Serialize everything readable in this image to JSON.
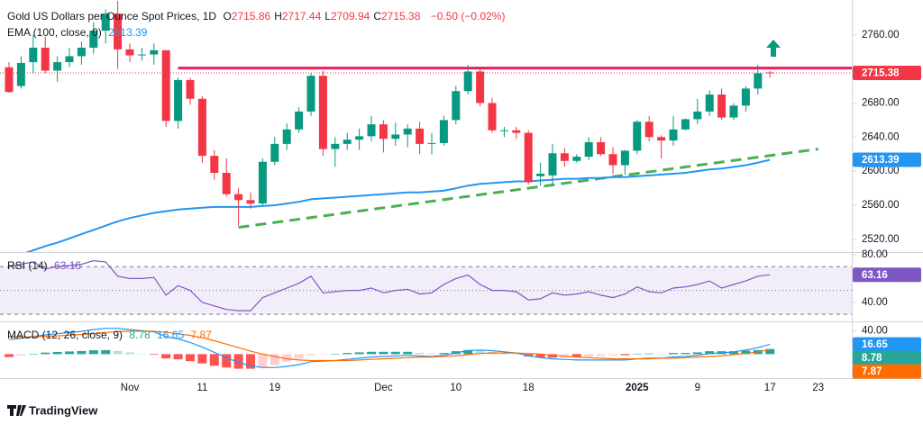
{
  "chart_data": {
    "type": "candlestick",
    "title": "Gold US Dollars per Ounce Spot Prices, 1D",
    "ohlc_labels": [
      "O",
      "H",
      "L",
      "C"
    ],
    "change": "−0.50 (−0.02%)",
    "categories": [
      null,
      null,
      null,
      null,
      null,
      null,
      null,
      null,
      null,
      null,
      "Nov",
      null,
      null,
      null,
      null,
      null,
      "11",
      null,
      null,
      null,
      null,
      null,
      "19",
      null,
      null,
      null,
      null,
      null,
      null,
      null,
      null,
      "Dec",
      null,
      null,
      null,
      null,
      null,
      "10",
      null,
      null,
      null,
      null,
      null,
      "18",
      null,
      null,
      null,
      null,
      null,
      null,
      null,
      null,
      "2025",
      null,
      null,
      null,
      null,
      "9",
      null,
      null,
      null,
      null,
      null,
      "17",
      null,
      null,
      null,
      "23"
    ],
    "open": [
      2722,
      2700,
      2728,
      2745,
      2718,
      2728,
      2735,
      2745,
      2765,
      2785,
      2743,
      2736,
      2737,
      2742,
      2659,
      2707,
      2685,
      2618,
      2598,
      2573,
      2566,
      2562,
      2611,
      2632,
      2649,
      2670,
      2712,
      2626,
      2632,
      2637,
      2641,
      2655,
      2638,
      2643,
      2650,
      2632,
      2633,
      2660,
      2694,
      2717,
      2680,
      2648,
      2648,
      2645,
      2594,
      2595,
      2621,
      2612,
      2617,
      2634,
      2620,
      2607,
      2624,
      2658,
      2640,
      2636,
      2649,
      2661,
      2670,
      2690,
      2663,
      2677,
      2697,
      2715.86,
      null,
      null,
      null,
      null
    ],
    "high": [
      2728,
      2735,
      2760,
      2758,
      2735,
      2745,
      2752,
      2775,
      2790,
      2800,
      2750,
      2745,
      2750,
      2742,
      2710,
      2710,
      2688,
      2625,
      2615,
      2580,
      2575,
      2615,
      2640,
      2656,
      2675,
      2715,
      2718,
      2640,
      2645,
      2650,
      2665,
      2660,
      2657,
      2655,
      2658,
      2645,
      2665,
      2700,
      2725,
      2722,
      2686,
      2652,
      2652,
      2648,
      2610,
      2632,
      2627,
      2620,
      2640,
      2640,
      2628,
      2625,
      2660,
      2665,
      2642,
      2665,
      2662,
      2685,
      2695,
      2697,
      2680,
      2700,
      2725,
      2717.44,
      null,
      null,
      null,
      null
    ],
    "low": [
      2692,
      2697,
      2715,
      2715,
      2705,
      2722,
      2725,
      2738,
      2750,
      2720,
      2728,
      2730,
      2725,
      2652,
      2650,
      2678,
      2610,
      2590,
      2570,
      2536,
      2556,
      2560,
      2607,
      2625,
      2645,
      2665,
      2618,
      2605,
      2625,
      2625,
      2635,
      2622,
      2630,
      2628,
      2620,
      2620,
      2630,
      2655,
      2690,
      2676,
      2645,
      2640,
      2638,
      2584,
      2583,
      2583,
      2605,
      2610,
      2613,
      2618,
      2597,
      2596,
      2620,
      2635,
      2615,
      2630,
      2648,
      2655,
      2665,
      2660,
      2660,
      2670,
      2690,
      2709.94,
      null,
      null,
      null,
      null
    ],
    "close": [
      2693,
      2727,
      2745,
      2718,
      2728,
      2735,
      2745,
      2765,
      2785,
      2743,
      2736,
      2737,
      2742,
      2659,
      2707,
      2685,
      2618,
      2598,
      2573,
      2566,
      2562,
      2611,
      2632,
      2649,
      2670,
      2712,
      2626,
      2632,
      2637,
      2641,
      2655,
      2638,
      2643,
      2650,
      2632,
      2633,
      2660,
      2694,
      2717,
      2680,
      2648,
      2648,
      2645,
      2587,
      2597,
      2621,
      2612,
      2617,
      2634,
      2620,
      2607,
      2624,
      2658,
      2640,
      2636,
      2649,
      2661,
      2670,
      2690,
      2663,
      2677,
      2697,
      2715,
      2715.38,
      null,
      null,
      null,
      null
    ],
    "up_color": "#089981",
    "down_color": "#f23645",
    "ylim": [
      2505,
      2801
    ],
    "yticks": [
      {
        "value": 2760,
        "label": "2760.00"
      },
      {
        "value": 2680,
        "label": "2680.00"
      },
      {
        "value": 2640,
        "label": "2640.00"
      },
      {
        "value": 2600,
        "label": "2600.00"
      },
      {
        "value": 2560,
        "label": "2560.00"
      },
      {
        "value": 2520,
        "label": "2520.00"
      }
    ],
    "ema": {
      "name": "EMA (100, close, 0)",
      "color": "#2196f3",
      "values": [
        2498,
        2502,
        2507,
        2512,
        2516,
        2521,
        2526,
        2531,
        2536,
        2541,
        2545,
        2548,
        2551,
        2553,
        2555,
        2556,
        2557,
        2558,
        2558,
        2558,
        2558,
        2559,
        2560,
        2562,
        2564,
        2567,
        2568,
        2569,
        2570,
        2571,
        2572,
        2573,
        2574,
        2575,
        2575,
        2576,
        2577,
        2580,
        2583,
        2585,
        2586,
        2587,
        2588,
        2588,
        2589,
        2590,
        2591,
        2591,
        2592,
        2592,
        2593,
        2593,
        2594,
        2595,
        2596,
        2597,
        2598,
        2600,
        2602,
        2603,
        2605,
        2607,
        2610,
        2613.39,
        null,
        null,
        null,
        null
      ]
    },
    "resistance": {
      "value": 2721,
      "color": "#e91e63"
    },
    "trendline": {
      "x": [
        19,
        67
      ],
      "values": [
        2534,
        2626
      ],
      "color": "#4caf50"
    },
    "rsi": {
      "title": "RSI (14)",
      "color": "#7e57c2",
      "values": [
        70,
        72,
        74,
        68,
        70,
        71,
        72,
        75,
        74,
        62,
        60,
        60,
        61,
        46,
        54,
        50,
        40,
        37,
        34,
        33,
        33,
        44,
        48,
        52,
        56,
        62,
        48,
        49,
        50,
        50,
        52,
        48,
        50,
        51,
        47,
        48,
        55,
        60,
        63,
        55,
        50,
        50,
        49,
        42,
        43,
        48,
        46,
        47,
        49,
        46,
        44,
        47,
        53,
        49,
        48,
        52,
        53,
        55,
        58,
        52,
        55,
        58,
        62,
        63.16,
        null,
        null,
        null,
        null
      ],
      "ylim": [
        24,
        81.5
      ],
      "yticks": [
        {
          "value": 80,
          "label": "80.00"
        },
        {
          "value": 40,
          "label": "40.00"
        }
      ],
      "bands": {
        "upper": 70,
        "middle": 50,
        "lower": 30
      }
    },
    "macd": {
      "title": "MACD (12, 26, close, 9)",
      "ylim": [
        -41,
        54.5
      ],
      "yticks": [
        {
          "value": 40,
          "label": "40.00"
        }
      ],
      "histogram": {
        "colors": {
          "positive": "#26a69a",
          "positive_falling": "#b2dfdb",
          "negative": "#ff5252",
          "negative_rising": "#ffcdd2"
        },
        "values": [
          -5,
          -2.6,
          0.3,
          2.6,
          3.7,
          4.6,
          5.3,
          6.6,
          6.9,
          5.5,
          2.8,
          0.6,
          -1.1,
          -7.3,
          -9,
          -12,
          -16,
          -20,
          -23,
          -25,
          -25,
          -23,
          -19,
          -13,
          -8,
          -2,
          -1,
          0,
          2,
          3,
          4,
          4,
          4,
          4,
          2,
          1,
          2,
          5,
          7,
          6,
          4,
          2,
          0,
          -4,
          -6,
          -6,
          -5,
          -5,
          -4,
          -3,
          -2,
          -2,
          0,
          1,
          0,
          2,
          2,
          3,
          5,
          5,
          5,
          6,
          7,
          8.78,
          null,
          null,
          null,
          null
        ]
      },
      "macd": {
        "color": "#2196f3",
        "values": [
          25,
          27,
          30,
          33,
          35,
          37,
          39,
          42,
          44,
          44,
          42,
          40,
          38,
          30,
          26,
          20,
          12,
          3,
          -6,
          -14,
          -20,
          -23,
          -23,
          -21,
          -18,
          -13,
          -12,
          -11,
          -9,
          -7,
          -5,
          -4,
          -3,
          -2,
          -3,
          -4,
          -2,
          2,
          6,
          7,
          6,
          4,
          2,
          -3,
          -6,
          -8,
          -9,
          -10,
          -10,
          -10,
          -10,
          -10,
          -8,
          -7,
          -7,
          -5,
          -4,
          -2,
          1,
          2,
          4,
          7,
          11,
          16.65,
          null,
          null,
          null,
          null
        ]
      },
      "signal": {
        "color": "#ff6d00",
        "values": [
          30,
          29.6,
          29.7,
          30.4,
          31.3,
          32.4,
          33.7,
          35.4,
          37.1,
          38.5,
          39.2,
          39.4,
          39.1,
          37.3,
          35,
          32,
          28,
          23,
          17,
          11,
          5,
          0,
          -4,
          -8,
          -10,
          -11,
          -11,
          -11,
          -11,
          -10,
          -9,
          -8,
          -7,
          -6,
          -5,
          -5,
          -4,
          -3,
          -1,
          1,
          2,
          2,
          2,
          1,
          0,
          -2,
          -4,
          -5,
          -6,
          -7,
          -8,
          -8,
          -8,
          -8,
          -7,
          -7,
          -6,
          -5,
          -4,
          -3,
          -1,
          1,
          4,
          7.87,
          null,
          null,
          null,
          null
        ]
      }
    }
  },
  "branding": "TradingView"
}
